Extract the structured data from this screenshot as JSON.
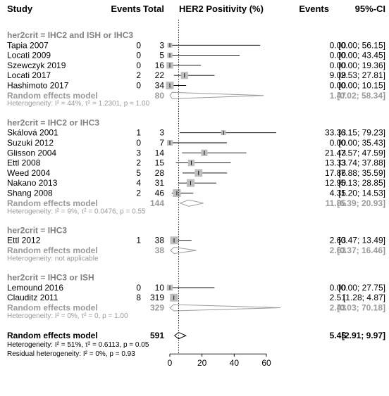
{
  "headers": {
    "study": "Study",
    "events": "Events",
    "total": "Total",
    "positivity": "HER2 Positivity (%)",
    "events_right": "Events",
    "ci": "95%-CI"
  },
  "chart_data": {
    "type": "forest",
    "x_ticks": [
      0,
      20,
      40,
      60
    ],
    "xlim": [
      -5,
      70
    ],
    "reference_line": 5.45,
    "groups": [
      {
        "label": "her2crit = IHC2 and ISH or IHC3",
        "studies": [
          {
            "study": "Tapia 2007",
            "events": "0",
            "total": "3",
            "est": 0.0,
            "lo": 0.0,
            "hi": 56.15,
            "text": "0.00",
            "ci_text": "[0.00; 56.15]"
          },
          {
            "study": "Locati 2009",
            "events": "0",
            "total": "5",
            "est": 0.0,
            "lo": 0.0,
            "hi": 43.45,
            "text": "0.00",
            "ci_text": "[0.00; 43.45]"
          },
          {
            "study": "Szewczyk 2019",
            "events": "0",
            "total": "16",
            "est": 0.0,
            "lo": 0.0,
            "hi": 19.36,
            "text": "0.00",
            "ci_text": "[0.00; 19.36]"
          },
          {
            "study": "Locati 2017",
            "events": "2",
            "total": "22",
            "est": 9.09,
            "lo": 2.53,
            "hi": 27.81,
            "text": "9.09",
            "ci_text": "[2.53; 27.81]"
          },
          {
            "study": "Hashimoto 2017",
            "events": "0",
            "total": "34",
            "est": 0.0,
            "lo": 0.0,
            "hi": 10.15,
            "text": "0.00",
            "ci_text": "[0.00; 10.15]"
          }
        ],
        "pooled": {
          "label": "Random effects model",
          "total": "80",
          "est": 1.47,
          "lo": 0.02,
          "hi": 58.34,
          "text": "1.47",
          "ci_text": "[0.02; 58.34]"
        },
        "heterogeneity": "Heterogeneity: I² = 44%, τ² = 1.2301, p = 1.00"
      },
      {
        "label": "her2crit = IHC2 or IHC3",
        "studies": [
          {
            "study": "Skálová 2001",
            "events": "1",
            "total": "3",
            "est": 33.33,
            "lo": 6.15,
            "hi": 79.23,
            "text": "33.33",
            "ci_text": "[6.15; 79.23]"
          },
          {
            "study": "Suzuki 2012",
            "events": "0",
            "total": "7",
            "est": 0.0,
            "lo": 0.0,
            "hi": 35.43,
            "text": "0.00",
            "ci_text": "[0.00; 35.43]"
          },
          {
            "study": "Glisson 2004",
            "events": "3",
            "total": "14",
            "est": 21.43,
            "lo": 7.57,
            "hi": 47.59,
            "text": "21.43",
            "ci_text": "[7.57; 47.59]"
          },
          {
            "study": "Ettl 2008",
            "events": "2",
            "total": "15",
            "est": 13.33,
            "lo": 3.74,
            "hi": 37.88,
            "text": "13.33",
            "ci_text": "[3.74; 37.88]"
          },
          {
            "study": "Weed 2004",
            "events": "5",
            "total": "28",
            "est": 17.86,
            "lo": 7.88,
            "hi": 35.59,
            "text": "17.86",
            "ci_text": "[7.88; 35.59]"
          },
          {
            "study": "Nakano 2013",
            "events": "4",
            "total": "31",
            "est": 12.9,
            "lo": 5.13,
            "hi": 28.85,
            "text": "12.90",
            "ci_text": "[5.13; 28.85]"
          },
          {
            "study": "Shang 2008",
            "events": "2",
            "total": "46",
            "est": 4.35,
            "lo": 1.2,
            "hi": 14.53,
            "text": "4.35",
            "ci_text": "[1.20; 14.53]"
          }
        ],
        "pooled": {
          "label": "Random effects model",
          "total": "144",
          "est": 11.85,
          "lo": 6.39,
          "hi": 20.93,
          "text": "11.85",
          "ci_text": "[6.39; 20.93]"
        },
        "heterogeneity": "Heterogeneity: I² = 9%, τ² = 0.0476, p = 0.55"
      },
      {
        "label": "her2crit = IHC3",
        "studies": [
          {
            "study": "Ettl 2012",
            "events": "1",
            "total": "38",
            "est": 2.63,
            "lo": 0.47,
            "hi": 13.49,
            "text": "2.63",
            "ci_text": "[0.47; 13.49]"
          }
        ],
        "pooled": {
          "label": "Random effects model",
          "total": "38",
          "est": 2.63,
          "lo": 0.37,
          "hi": 16.46,
          "text": "2.63",
          "ci_text": "[0.37; 16.46]"
        },
        "heterogeneity": "Heterogeneity: not applicable"
      },
      {
        "label": "her2crit = IHC3 or ISH",
        "studies": [
          {
            "study": "Lemound 2016",
            "events": "0",
            "total": "10",
            "est": 0.0,
            "lo": 0.0,
            "hi": 27.75,
            "text": "0.00",
            "ci_text": "[0.00; 27.75]"
          },
          {
            "study": "Clauditz 2011",
            "events": "8",
            "total": "319",
            "est": 2.51,
            "lo": 1.28,
            "hi": 4.87,
            "text": "2.51",
            "ci_text": "[1.28; 4.87]"
          }
        ],
        "pooled": {
          "label": "Random effects model",
          "total": "329",
          "est": 2.43,
          "lo": 0.03,
          "hi": 70.18,
          "text": "2.43",
          "ci_text": "[0.03; 70.18]"
        },
        "heterogeneity": "Heterogeneity: I² = 0%, τ² = 0, p = 1.00"
      }
    ],
    "overall": {
      "label": "Random effects model",
      "total": "591",
      "est": 5.45,
      "lo": 2.91,
      "hi": 9.97,
      "text": "5.45",
      "ci_text": "[2.91; 9.97]"
    },
    "overall_heterogeneity": "Heterogeneity: I² = 51%, τ² = 0.6113, p = 0.05",
    "residual_heterogeneity": "Residual heterogeneity: I² = 0%, p = 0.93",
    "colors": {
      "study_box": "#bdbdbd",
      "subgroup": "#9a9a9a",
      "group_label": "#808080",
      "overall": "#000000"
    }
  }
}
